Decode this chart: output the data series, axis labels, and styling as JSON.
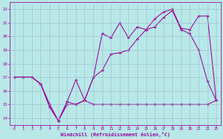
{
  "xlabel": "Windchill (Refroidissement éolien,°C)",
  "bg_color": "#b8e8e8",
  "line_color": "#990099",
  "grid_color": "#99bbcc",
  "x_ticks": [
    0,
    1,
    2,
    3,
    4,
    5,
    6,
    7,
    8,
    9,
    10,
    11,
    12,
    13,
    14,
    15,
    16,
    17,
    18,
    19,
    20,
    21,
    22,
    23
  ],
  "ylim": [
    13.5,
    22.5
  ],
  "xlim": [
    -0.5,
    23.5
  ],
  "yticks": [
    14,
    15,
    16,
    17,
    18,
    19,
    20,
    21,
    22
  ],
  "line1_x": [
    0,
    1,
    2,
    3,
    4,
    5,
    6,
    7,
    8,
    9,
    10,
    11,
    12,
    13,
    14,
    15,
    16,
    17,
    18,
    19,
    20,
    21,
    22,
    23
  ],
  "line1_y": [
    17.0,
    17.0,
    17.0,
    16.5,
    15.0,
    13.8,
    15.0,
    15.0,
    15.3,
    15.0,
    15.0,
    15.0,
    15.0,
    15.0,
    15.0,
    15.0,
    15.0,
    15.0,
    15.0,
    15.0,
    15.0,
    15.0,
    15.0,
    15.3
  ],
  "line2_x": [
    0,
    1,
    2,
    3,
    4,
    5,
    6,
    7,
    8,
    9,
    10,
    11,
    12,
    13,
    14,
    15,
    16,
    17,
    18,
    19,
    20,
    21,
    22,
    23
  ],
  "line2_y": [
    17.0,
    17.0,
    17.0,
    16.5,
    15.0,
    13.8,
    15.2,
    15.0,
    15.3,
    17.0,
    17.5,
    18.7,
    18.8,
    19.0,
    19.8,
    20.5,
    20.7,
    21.4,
    21.9,
    20.5,
    20.2,
    19.0,
    16.7,
    15.3
  ],
  "line3_x": [
    0,
    1,
    2,
    3,
    4,
    5,
    6,
    7,
    8,
    9,
    10,
    11,
    12,
    13,
    14,
    15,
    16,
    17,
    18,
    19,
    20,
    21,
    22,
    23
  ],
  "line3_y": [
    17.0,
    17.0,
    17.0,
    16.5,
    14.8,
    13.8,
    15.2,
    16.8,
    15.3,
    17.0,
    20.2,
    19.9,
    21.0,
    19.9,
    20.7,
    20.5,
    21.3,
    21.8,
    22.0,
    20.6,
    20.5,
    21.5,
    21.5,
    15.3
  ]
}
